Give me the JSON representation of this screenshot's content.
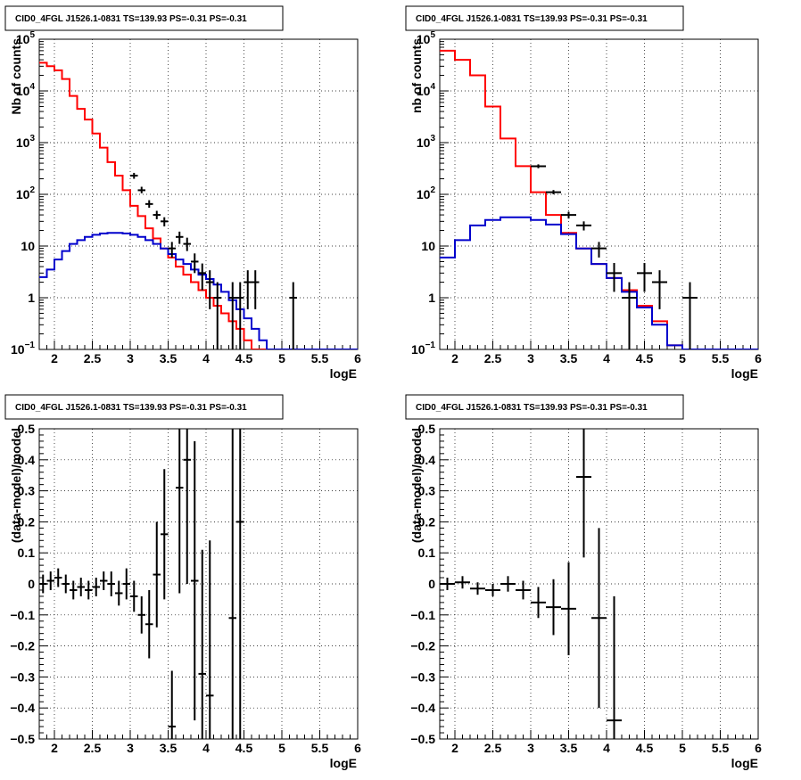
{
  "chart_data": [
    {
      "type": "step",
      "title": "CID0_4FGL J1526.1-0831 TS=139.93 PS=-0.31 PS=-0.31",
      "xlabel": "logE",
      "ylabel": "Nb of counts",
      "xlim": [
        1.8,
        6.0
      ],
      "ylim": [
        0.1,
        100000
      ],
      "yscale": "log",
      "grid": true,
      "xticks": [
        "2",
        "2.5",
        "3",
        "3.5",
        "4",
        "4.5",
        "5",
        "5.5",
        "6"
      ],
      "yticks": [
        {
          "value": 0.1,
          "m": "10",
          "e": "−1"
        },
        {
          "value": 1,
          "m": "1",
          "e": ""
        },
        {
          "value": 10,
          "m": "10",
          "e": ""
        },
        {
          "value": 100,
          "m": "10",
          "e": "2"
        },
        {
          "value": 1000,
          "m": "10",
          "e": "3"
        },
        {
          "value": 10000,
          "m": "10",
          "e": "4"
        },
        {
          "value": 100000,
          "m": "10",
          "e": "5"
        }
      ],
      "bin_edges": [
        1.8,
        1.9,
        2.0,
        2.1,
        2.2,
        2.3,
        2.4,
        2.5,
        2.6,
        2.7,
        2.8,
        2.9,
        3.0,
        3.1,
        3.2,
        3.3,
        3.4,
        3.5,
        3.6,
        3.7,
        3.8,
        3.9,
        4.0,
        4.1,
        4.2,
        4.3,
        4.4,
        4.5,
        4.6,
        4.7,
        4.8,
        4.9,
        5.0,
        5.1,
        5.2,
        5.3,
        5.4,
        5.5,
        5.6,
        5.7,
        5.8,
        5.9,
        6.0
      ],
      "series": [
        {
          "color": "#ff0000",
          "values": [
            35000,
            30000,
            25000,
            17000,
            8000,
            4500,
            2800,
            1500,
            800,
            420,
            230,
            120,
            60,
            38,
            22,
            14,
            9,
            6,
            4,
            2.8,
            2.0,
            1.4,
            1.0,
            0.7,
            0.5,
            0.35,
            0.25,
            0.15,
            0.1,
            0.1,
            0.1,
            0.1,
            0.1,
            0.1,
            0.1,
            0.1,
            0.1,
            0.1,
            0.1,
            0.1,
            0.1,
            0.1
          ]
        },
        {
          "color": "#0000cc",
          "values": [
            2.5,
            3.5,
            5.5,
            8,
            11,
            13,
            15,
            16.5,
            17.5,
            18,
            18,
            17.5,
            16.5,
            15,
            13,
            11,
            9,
            7,
            5.5,
            4.5,
            3.5,
            2.8,
            2.3,
            1.8,
            1.3,
            0.9,
            0.6,
            0.4,
            0.25,
            0.15,
            0.1,
            0.1,
            0.1,
            0.1,
            0.1,
            0.1,
            0.1,
            0.1,
            0.1,
            0.1,
            0.1,
            0.1
          ]
        }
      ],
      "data_points": [
        {
          "x": 3.05,
          "y": 230,
          "ylo": 200,
          "yhi": 260
        },
        {
          "x": 3.15,
          "y": 120,
          "ylo": 105,
          "yhi": 140
        },
        {
          "x": 3.25,
          "y": 65,
          "ylo": 55,
          "yhi": 77
        },
        {
          "x": 3.35,
          "y": 40,
          "ylo": 33,
          "yhi": 48
        },
        {
          "x": 3.45,
          "y": 30,
          "ylo": 24,
          "yhi": 36
        },
        {
          "x": 3.55,
          "y": 9,
          "ylo": 6,
          "yhi": 12
        },
        {
          "x": 3.65,
          "y": 15,
          "ylo": 11,
          "yhi": 19
        },
        {
          "x": 3.75,
          "y": 11,
          "ylo": 8,
          "yhi": 14.5
        },
        {
          "x": 3.85,
          "y": 5,
          "ylo": 3,
          "yhi": 7.2
        },
        {
          "x": 3.95,
          "y": 3,
          "ylo": 1.4,
          "yhi": 4.6
        },
        {
          "x": 4.05,
          "y": 2,
          "ylo": 0.6,
          "yhi": 3.4
        },
        {
          "x": 4.15,
          "y": 1,
          "ylo": 0.1,
          "yhi": 2.0
        },
        {
          "x": 4.35,
          "y": 1,
          "ylo": 0.1,
          "yhi": 2.0
        },
        {
          "x": 4.45,
          "y": 1,
          "ylo": 0.1,
          "yhi": 2.0
        },
        {
          "x": 4.55,
          "y": 2,
          "ylo": 0.6,
          "yhi": 3.4
        },
        {
          "x": 4.65,
          "y": 2,
          "ylo": 0.6,
          "yhi": 3.4
        },
        {
          "x": 5.15,
          "y": 1,
          "ylo": 0.1,
          "yhi": 2.0
        }
      ]
    },
    {
      "type": "step",
      "title": "CID0_4FGL J1526.1-0831 TS=139.93 PS=-0.31 PS=-0.31",
      "xlabel": "logE",
      "ylabel": "nb of counts",
      "xlim": [
        1.8,
        6.0
      ],
      "ylim": [
        0.1,
        100000
      ],
      "yscale": "log",
      "grid": true,
      "xticks": [
        "2",
        "2.5",
        "3",
        "3.5",
        "4",
        "4.5",
        "5",
        "5.5",
        "6"
      ],
      "yticks": [
        {
          "value": 0.1,
          "m": "10",
          "e": "−1"
        },
        {
          "value": 1,
          "m": "1",
          "e": ""
        },
        {
          "value": 10,
          "m": "10",
          "e": ""
        },
        {
          "value": 100,
          "m": "10",
          "e": "2"
        },
        {
          "value": 1000,
          "m": "10",
          "e": "3"
        },
        {
          "value": 10000,
          "m": "10",
          "e": "4"
        },
        {
          "value": 100000,
          "m": "10",
          "e": "5"
        }
      ],
      "bin_edges": [
        1.8,
        2.0,
        2.2,
        2.4,
        2.6,
        2.8,
        3.0,
        3.2,
        3.4,
        3.6,
        3.8,
        4.0,
        4.2,
        4.4,
        4.6,
        4.8,
        5.0,
        5.2,
        5.4,
        5.6,
        5.8,
        6.0
      ],
      "series": [
        {
          "color": "#ff0000",
          "values": [
            60000,
            40000,
            20000,
            5000,
            1200,
            350,
            110,
            40,
            18,
            9,
            4.5,
            2.4,
            1.4,
            0.7,
            0.35,
            0.12,
            0.1,
            0.1,
            0.1,
            0.1,
            0.1
          ]
        },
        {
          "color": "#0000cc",
          "values": [
            6,
            13,
            25,
            32,
            36,
            36,
            32,
            26,
            17,
            9,
            4.5,
            2.4,
            1.3,
            0.65,
            0.3,
            0.12,
            0.1,
            0.1,
            0.1,
            0.1,
            0.1
          ]
        }
      ],
      "data_points": [
        {
          "x": 3.1,
          "y": 350,
          "ylo": 320,
          "yhi": 380
        },
        {
          "x": 3.3,
          "y": 110,
          "ylo": 100,
          "yhi": 121
        },
        {
          "x": 3.5,
          "y": 40,
          "ylo": 34,
          "yhi": 46
        },
        {
          "x": 3.7,
          "y": 25,
          "ylo": 20,
          "yhi": 30
        },
        {
          "x": 3.9,
          "y": 9,
          "ylo": 6,
          "yhi": 12
        },
        {
          "x": 4.1,
          "y": 3,
          "ylo": 1.3,
          "yhi": 4.7
        },
        {
          "x": 4.3,
          "y": 1,
          "ylo": 0.1,
          "yhi": 2.0
        },
        {
          "x": 4.5,
          "y": 3,
          "ylo": 1.3,
          "yhi": 4.7
        },
        {
          "x": 4.7,
          "y": 2,
          "ylo": 0.6,
          "yhi": 3.4
        },
        {
          "x": 5.1,
          "y": 1,
          "ylo": 0.1,
          "yhi": 2.0
        }
      ]
    },
    {
      "type": "errorbar",
      "title": "CID0_4FGL J1526.1-0831 TS=139.93 PS=-0.31 PS=-0.31",
      "xlabel": "logE",
      "ylabel": "(data-model)/model",
      "xlim": [
        1.8,
        6.0
      ],
      "ylim": [
        -0.5,
        0.5
      ],
      "yscale": "linear",
      "grid": true,
      "xticks": [
        "2",
        "2.5",
        "3",
        "3.5",
        "4",
        "4.5",
        "5",
        "5.5",
        "6"
      ],
      "yticks": [
        "−0.5",
        "−0.4",
        "−0.3",
        "−0.2",
        "−0.1",
        "0",
        "0.1",
        "0.2",
        "0.3",
        "0.4",
        "0.5"
      ],
      "binwidth": 0.1,
      "data_points": [
        {
          "x": 1.85,
          "y": 0.0,
          "err": 0.03
        },
        {
          "x": 1.95,
          "y": 0.01,
          "err": 0.03
        },
        {
          "x": 2.05,
          "y": 0.02,
          "err": 0.03
        },
        {
          "x": 2.15,
          "y": 0.0,
          "err": 0.03
        },
        {
          "x": 2.25,
          "y": -0.02,
          "err": 0.03
        },
        {
          "x": 2.35,
          "y": -0.01,
          "err": 0.03
        },
        {
          "x": 2.45,
          "y": -0.02,
          "err": 0.03
        },
        {
          "x": 2.55,
          "y": -0.01,
          "err": 0.03
        },
        {
          "x": 2.65,
          "y": 0.01,
          "err": 0.03
        },
        {
          "x": 2.75,
          "y": 0.0,
          "err": 0.04
        },
        {
          "x": 2.85,
          "y": -0.03,
          "err": 0.04
        },
        {
          "x": 2.95,
          "y": 0.0,
          "err": 0.05
        },
        {
          "x": 3.05,
          "y": -0.04,
          "err": 0.05
        },
        {
          "x": 3.15,
          "y": -0.1,
          "err": 0.06
        },
        {
          "x": 3.25,
          "y": -0.13,
          "err": 0.11
        },
        {
          "x": 3.35,
          "y": 0.03,
          "err": 0.17
        },
        {
          "x": 3.45,
          "y": 0.16,
          "err": 0.21
        },
        {
          "x": 3.55,
          "y": -0.46,
          "err": 0.18
        },
        {
          "x": 3.65,
          "y": 0.31,
          "err": 0.34
        },
        {
          "x": 3.75,
          "y": 0.4,
          "err": 0.4
        },
        {
          "x": 3.85,
          "y": 0.01,
          "err": 0.45
        },
        {
          "x": 3.95,
          "y": -0.29,
          "err": 0.4
        },
        {
          "x": 4.05,
          "y": -0.36,
          "err": 0.5
        },
        {
          "x": 4.35,
          "y": -0.11,
          "err": 1.0
        },
        {
          "x": 4.45,
          "y": 0.2,
          "err": 1.0
        }
      ]
    },
    {
      "type": "errorbar",
      "title": "CID0_4FGL J1526.1-0831 TS=139.93 PS=-0.31 PS=-0.31",
      "xlabel": "logE",
      "ylabel": "(data-model)/model",
      "xlim": [
        1.8,
        6.0
      ],
      "ylim": [
        -0.5,
        0.5
      ],
      "yscale": "linear",
      "grid": true,
      "xticks": [
        "2",
        "2.5",
        "3",
        "3.5",
        "4",
        "4.5",
        "5",
        "5.5",
        "6"
      ],
      "yticks": [
        "−0.5",
        "−0.4",
        "−0.3",
        "−0.2",
        "−0.1",
        "0",
        "0.1",
        "0.2",
        "0.3",
        "0.4",
        "0.5"
      ],
      "binwidth": 0.2,
      "data_points": [
        {
          "x": 1.9,
          "y": 0.0,
          "err": 0.02
        },
        {
          "x": 2.1,
          "y": 0.005,
          "err": 0.02
        },
        {
          "x": 2.3,
          "y": -0.015,
          "err": 0.02
        },
        {
          "x": 2.5,
          "y": -0.02,
          "err": 0.02
        },
        {
          "x": 2.7,
          "y": 0.0,
          "err": 0.025
        },
        {
          "x": 2.9,
          "y": -0.02,
          "err": 0.03
        },
        {
          "x": 3.1,
          "y": -0.06,
          "err": 0.05
        },
        {
          "x": 3.3,
          "y": -0.075,
          "err": 0.09
        },
        {
          "x": 3.5,
          "y": -0.08,
          "err": 0.15
        },
        {
          "x": 3.7,
          "y": 0.345,
          "err": 0.26
        },
        {
          "x": 3.9,
          "y": -0.11,
          "err": 0.29
        },
        {
          "x": 4.1,
          "y": -0.44,
          "err": 0.4
        }
      ]
    }
  ]
}
